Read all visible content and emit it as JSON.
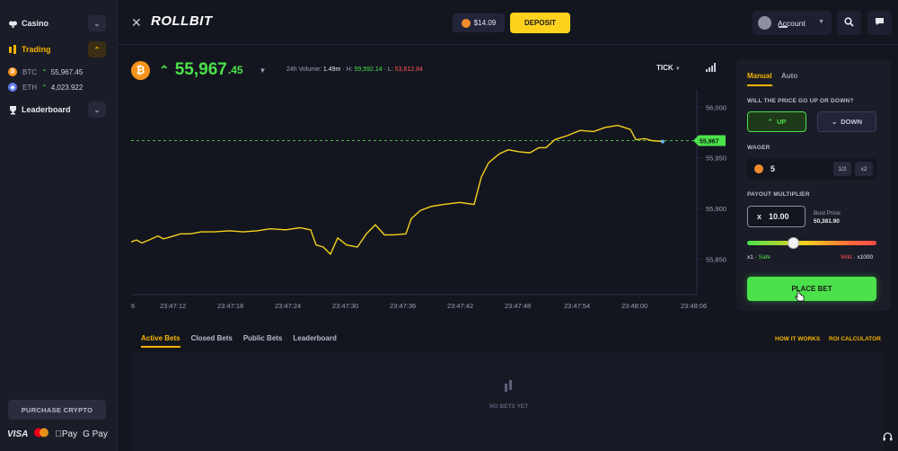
{
  "sidebar": {
    "casino_label": "Casino",
    "trading_label": "Trading",
    "coins": [
      {
        "symbol": "BTC",
        "price": "55,967.45"
      },
      {
        "symbol": "ETH",
        "price": "4,023.922"
      }
    ],
    "leaderboard_label": "Leaderboard",
    "purchase_label": "PURCHASE CRYPTO",
    "payments": [
      "VISA",
      "Pay",
      "G Pay"
    ]
  },
  "header": {
    "logo": "ROLLBIT",
    "balance": "$14.09",
    "deposit_label": "DEPOSIT",
    "account_label": "Account"
  },
  "ticker": {
    "price_main": "55,967",
    "price_decimal": ".45",
    "volume_label": "24h Volume:",
    "volume_value": "1.49m",
    "high_label": "H:",
    "high_value": "59,592.14",
    "low_label": "L:",
    "low_value": "53,612.84",
    "mode_label": "TICK"
  },
  "chart_data": {
    "type": "line",
    "x": [
      "23:47:12",
      "23:47:18",
      "23:47:24",
      "23:47:30",
      "23:47:36",
      "23:47:42",
      "23:47:48",
      "23:47:54",
      "23:48:00"
    ],
    "x_axis_ticks": [
      "6",
      "23:47:12",
      "23:47:18",
      "23:47:24",
      "23:47:30",
      "23:47:36",
      "23:47:42",
      "23:47:48",
      "23:47:54",
      "23:48:00",
      "23:48:06"
    ],
    "y_axis_ticks": [
      "56,000",
      "55,950",
      "55,900",
      "55,850"
    ],
    "ylim": [
      55815,
      56010
    ],
    "current_price_label": "55,967",
    "current_price": 55967,
    "points": [
      [
        0,
        55867
      ],
      [
        6,
        55869
      ],
      [
        12,
        55866
      ],
      [
        20,
        55869
      ],
      [
        30,
        55873
      ],
      [
        36,
        55870
      ],
      [
        44,
        55872
      ],
      [
        55,
        55875
      ],
      [
        66,
        55875
      ],
      [
        78,
        55877
      ],
      [
        92,
        55877
      ],
      [
        110,
        55878
      ],
      [
        125,
        55877
      ],
      [
        140,
        55878
      ],
      [
        155,
        55880
      ],
      [
        172,
        55879
      ],
      [
        188,
        55881
      ],
      [
        200,
        55879
      ],
      [
        206,
        55864
      ],
      [
        214,
        55862
      ],
      [
        222,
        55855
      ],
      [
        230,
        55871
      ],
      [
        240,
        55864
      ],
      [
        252,
        55862
      ],
      [
        262,
        55875
      ],
      [
        272,
        55884
      ],
      [
        282,
        55874
      ],
      [
        292,
        55874
      ],
      [
        306,
        55875
      ],
      [
        312,
        55890
      ],
      [
        322,
        55898
      ],
      [
        334,
        55902
      ],
      [
        348,
        55904
      ],
      [
        366,
        55906
      ],
      [
        382,
        55904
      ],
      [
        390,
        55931
      ],
      [
        398,
        55945
      ],
      [
        410,
        55954
      ],
      [
        420,
        55958
      ],
      [
        432,
        55956
      ],
      [
        444,
        55955
      ],
      [
        454,
        55960
      ],
      [
        462,
        55960
      ],
      [
        472,
        55968
      ],
      [
        486,
        55972
      ],
      [
        500,
        55977
      ],
      [
        515,
        55976
      ],
      [
        528,
        55980
      ],
      [
        542,
        55982
      ],
      [
        556,
        55978
      ],
      [
        562,
        55968
      ],
      [
        572,
        55969
      ],
      [
        580,
        55967
      ],
      [
        592,
        55966
      ]
    ]
  },
  "bets": {
    "tabs": [
      "Active Bets",
      "Closed Bets",
      "Public Bets",
      "Leaderboard"
    ],
    "how_label": "HOW IT WORKS",
    "roi_label": "ROI CALCULATOR",
    "empty_label": "NO BETS YET"
  },
  "panel": {
    "tab_manual": "Manual",
    "tab_auto": "Auto",
    "question": "WILL THE PRICE GO UP OR DOWN?",
    "up_label": "UP",
    "down_label": "DOWN",
    "wager_label": "WAGER",
    "wager_value": "5",
    "half_label": "1/2",
    "double_label": "x2",
    "multiplier_label": "PAYOUT MULTIPLIER",
    "multiplier_prefix": "x",
    "multiplier_value": "10.00",
    "bust_label": "Bust Price:",
    "bust_value": "50,381.90",
    "slider_left_value": "x1",
    "slider_left_word": "Safe",
    "slider_right_word": "Wild",
    "slider_right_value": "x1000",
    "slider_position": 0.31,
    "place_label": "PLACE BET"
  },
  "colors": {
    "accent": "#f5b400",
    "up": "#4be14b",
    "down": "#ff5454",
    "line": "#f5d21e"
  }
}
